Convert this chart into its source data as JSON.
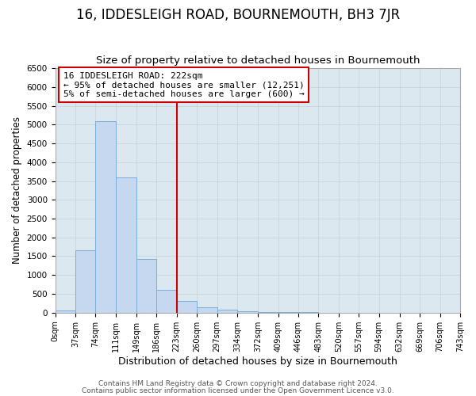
{
  "title": "16, IDDESLEIGH ROAD, BOURNEMOUTH, BH3 7JR",
  "subtitle": "Size of property relative to detached houses in Bournemouth",
  "xlabel": "Distribution of detached houses by size in Bournemouth",
  "ylabel": "Number of detached properties",
  "bin_edges": [
    0,
    37,
    74,
    111,
    149,
    186,
    223,
    260,
    297,
    334,
    372,
    409,
    446,
    483,
    520,
    557,
    594,
    632,
    669,
    706,
    743
  ],
  "bar_heights": [
    50,
    1650,
    5080,
    3600,
    1430,
    600,
    300,
    150,
    80,
    40,
    20,
    10,
    5,
    3,
    2,
    1,
    1,
    1,
    0,
    0
  ],
  "bar_color": "#c5d8f0",
  "bar_edge_color": "#7aadda",
  "grid_color": "#c8d4e0",
  "bg_color": "#dce8f0",
  "fig_bg_color": "#ffffff",
  "vline_x": 223,
  "vline_color": "#cc0000",
  "annotation_title": "16 IDDESLEIGH ROAD: 222sqm",
  "annotation_line1": "← 95% of detached houses are smaller (12,251)",
  "annotation_line2": "5% of semi-detached houses are larger (600) →",
  "annotation_box_color": "#cc0000",
  "ylim": [
    0,
    6500
  ],
  "yticks": [
    0,
    500,
    1000,
    1500,
    2000,
    2500,
    3000,
    3500,
    4000,
    4500,
    5000,
    5500,
    6000,
    6500
  ],
  "footer1": "Contains HM Land Registry data © Crown copyright and database right 2024.",
  "footer2": "Contains public sector information licensed under the Open Government Licence v3.0.",
  "title_fontsize": 12,
  "subtitle_fontsize": 9.5,
  "xlabel_fontsize": 9,
  "ylabel_fontsize": 8.5,
  "annotation_fontsize": 8,
  "footer_fontsize": 6.5
}
